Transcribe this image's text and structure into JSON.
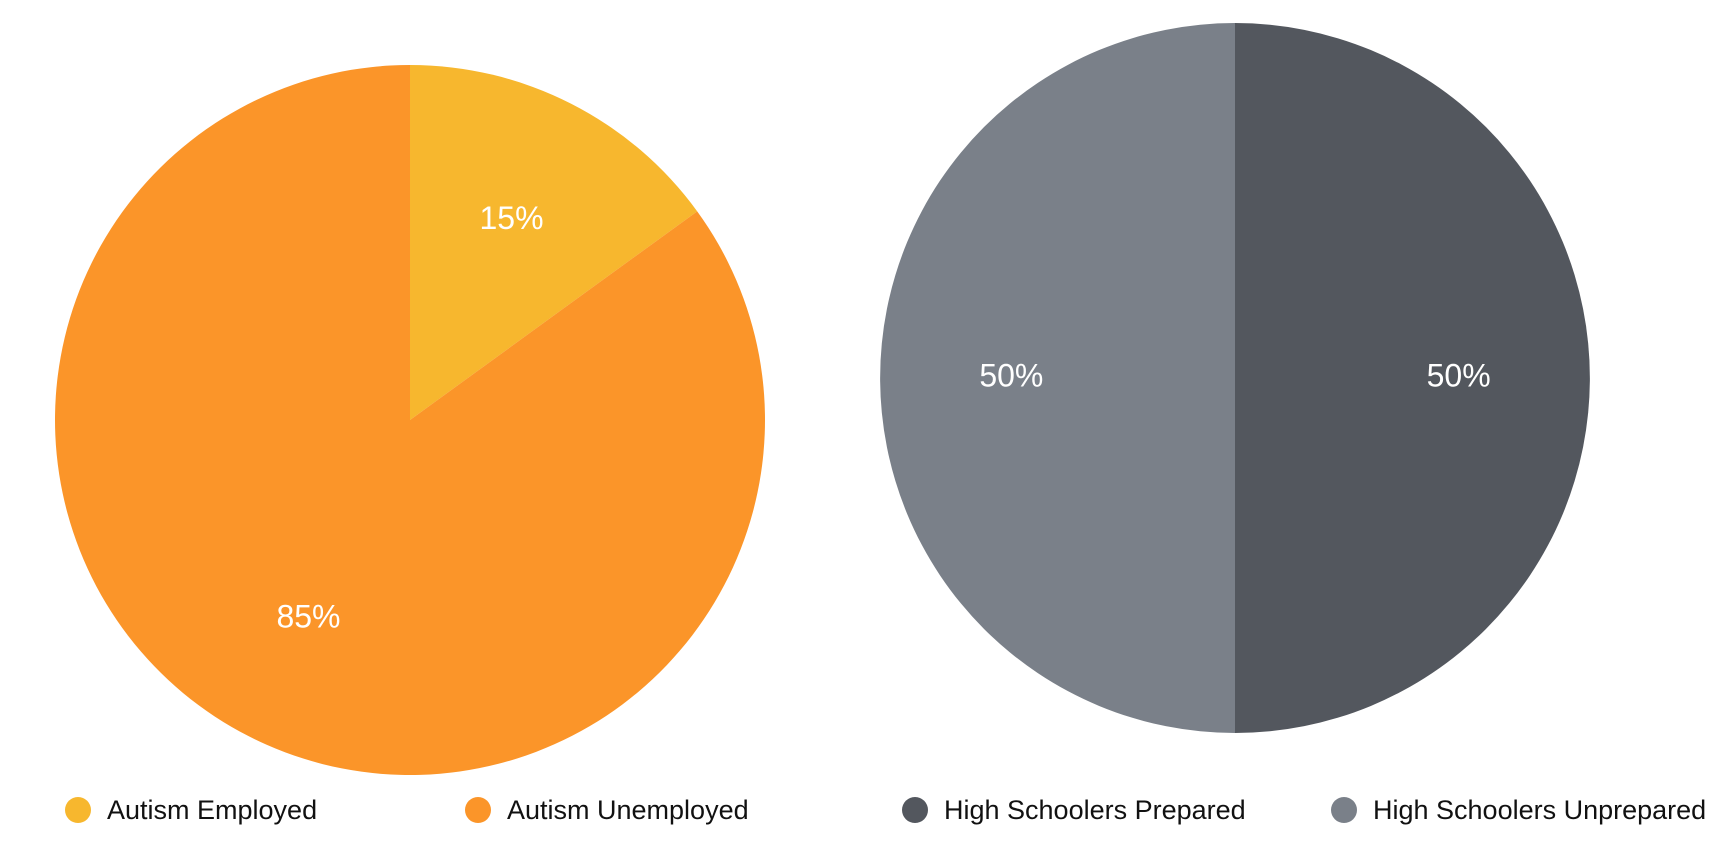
{
  "chart_data": [
    {
      "type": "pie",
      "categories": [
        "Autism Employed",
        "Autism Unemployed"
      ],
      "values": [
        15,
        85
      ],
      "labels": [
        "15%",
        "85%"
      ],
      "colors": [
        "#F7B72E",
        "#FB9529"
      ],
      "start_angle_deg": 0,
      "direction": "clockwise",
      "legend_position": "bottom"
    },
    {
      "type": "pie",
      "categories": [
        "High Schoolers Prepared",
        "High Schoolers Unprepared"
      ],
      "values": [
        50,
        50
      ],
      "labels": [
        "50%",
        "50%"
      ],
      "colors": [
        "#53575E",
        "#7A8089"
      ],
      "start_angle_deg": 0,
      "direction": "clockwise",
      "legend_position": "bottom"
    }
  ]
}
